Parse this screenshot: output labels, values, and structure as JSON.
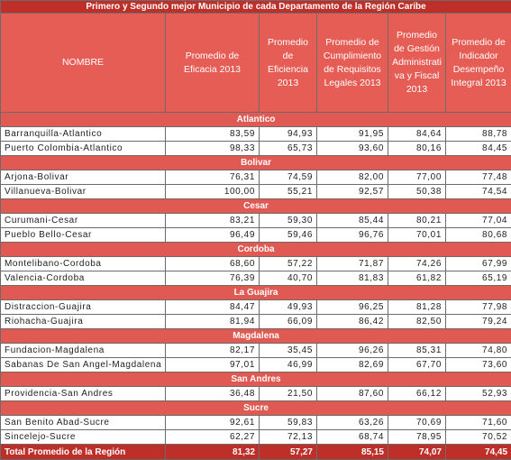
{
  "title": "Primero y Segundo mejor Municipio de cada Departamento de la Región Caribe",
  "columns": [
    "NOMBRE",
    "Promedio de Eficacia 2013",
    "Promedio de Eficiencia 2013",
    "Promedio de Cumplimiento de Requisitos Legales 2013",
    "Promedio de Gestión Administrativa y Fiscal 2013",
    "Promedio de Indicador Desempeño Integral 2013"
  ],
  "groups": [
    {
      "name": "Atlantico",
      "rows": [
        [
          "Barranquilla-Atlantico",
          "83,59",
          "94,93",
          "91,95",
          "84,64",
          "88,78"
        ],
        [
          "Puerto Colombia-Atlantico",
          "98,33",
          "65,73",
          "93,60",
          "80,16",
          "84,45"
        ]
      ]
    },
    {
      "name": "Bolivar",
      "rows": [
        [
          "Arjona-Bolivar",
          "76,31",
          "74,59",
          "82,00",
          "77,00",
          "77,48"
        ],
        [
          "Villanueva-Bolivar",
          "100,00",
          "55,21",
          "92,57",
          "50,38",
          "74,54"
        ]
      ]
    },
    {
      "name": "Cesar",
      "rows": [
        [
          "Curumani-Cesar",
          "83,21",
          "59,30",
          "85,44",
          "80,21",
          "77,04"
        ],
        [
          "Pueblo Bello-Cesar",
          "96,49",
          "59,46",
          "96,76",
          "70,01",
          "80,68"
        ]
      ]
    },
    {
      "name": "Cordoba",
      "rows": [
        [
          "Montelibano-Cordoba",
          "68,60",
          "57,22",
          "71,87",
          "74,26",
          "67,99"
        ],
        [
          "Valencia-Cordoba",
          "76,39",
          "40,70",
          "81,83",
          "61,82",
          "65,19"
        ]
      ]
    },
    {
      "name": "La Guajira",
      "rows": [
        [
          "Distraccion-Guajira",
          "84,47",
          "49,93",
          "96,25",
          "81,28",
          "77,98"
        ],
        [
          "Riohacha-Guajira",
          "81,94",
          "66,09",
          "86,42",
          "82,50",
          "79,24"
        ]
      ]
    },
    {
      "name": "Magdalena",
      "rows": [
        [
          "Fundacion-Magdalena",
          "82,17",
          "35,45",
          "96,26",
          "85,31",
          "74,80"
        ],
        [
          "Sabanas De San Angel-Magdalena",
          "97,01",
          "46,99",
          "82,69",
          "67,70",
          "73,60"
        ]
      ]
    },
    {
      "name": "San Andres",
      "rows": [
        [
          "Providencia-San Andres",
          "36,48",
          "21,50",
          "87,60",
          "66,12",
          "52,93"
        ]
      ]
    },
    {
      "name": "Sucre",
      "rows": [
        [
          "San Benito Abad-Sucre",
          "92,61",
          "59,83",
          "63,26",
          "70,69",
          "71,60"
        ],
        [
          "Sincelejo-Sucre",
          "62,27",
          "72,13",
          "68,74",
          "78,95",
          "70,52"
        ]
      ]
    }
  ],
  "total": [
    "Total Promedio de la Región",
    "81,32",
    "57,27",
    "85,15",
    "74,07",
    "74,45"
  ]
}
